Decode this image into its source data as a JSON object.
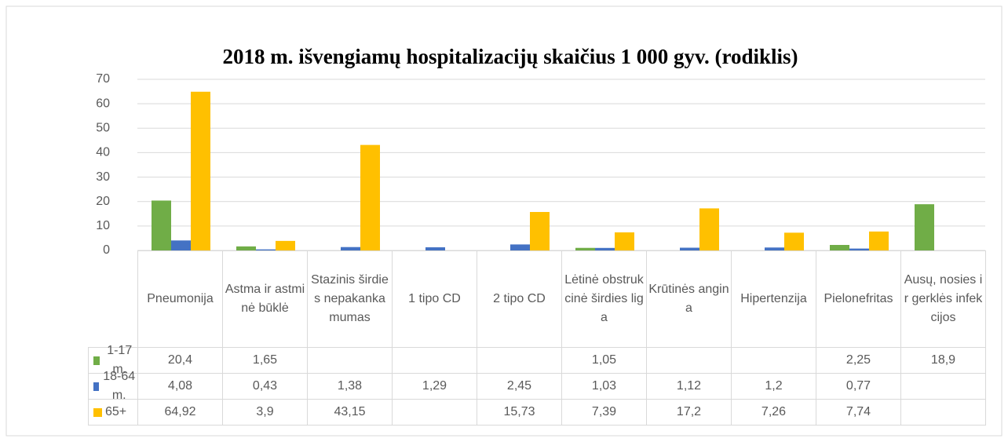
{
  "chart_data": {
    "type": "bar",
    "title": "2018 m. išvengiamų hospitalizacijų skaičius 1 000 gyv. (rodiklis)",
    "categories": [
      "Pneumonija",
      "Astma ir astminė būklė",
      "Stazinis širdies nepakankamumas",
      "1 tipo CD",
      "2 tipo CD",
      "Lėtinė obstrukcinė širdies liga",
      "Krūtinės angina",
      "Hipertenzija",
      "Pielonefritas",
      "Ausų, nosies ir gerklės infekcijos"
    ],
    "series": [
      {
        "name": "1-17 m.",
        "color": "#70ad47",
        "values": [
          20.4,
          1.65,
          null,
          null,
          null,
          1.05,
          null,
          null,
          2.25,
          18.9
        ],
        "value_labels": [
          "20,4",
          "1,65",
          null,
          null,
          null,
          "1,05",
          null,
          null,
          "2,25",
          "18,9"
        ]
      },
      {
        "name": "18-64 m.",
        "color": "#4472c4",
        "values": [
          4.08,
          0.43,
          1.38,
          1.29,
          2.45,
          1.03,
          1.12,
          1.2,
          0.77,
          null
        ],
        "value_labels": [
          "4,08",
          "0,43",
          "1,38",
          "1,29",
          "2,45",
          "1,03",
          "1,12",
          "1,2",
          "0,77",
          null
        ]
      },
      {
        "name": "65+",
        "color": "#ffc000",
        "values": [
          64.92,
          3.9,
          43.15,
          null,
          15.73,
          7.39,
          17.2,
          7.26,
          7.74,
          null
        ],
        "value_labels": [
          "64,92",
          "3,9",
          "43,15",
          null,
          "15,73",
          "7,39",
          "17,2",
          "7,26",
          "7,74",
          null
        ]
      }
    ],
    "ylim": [
      0,
      70
    ],
    "yticks": [
      0,
      10,
      20,
      30,
      40,
      50,
      60,
      70
    ],
    "grid": true
  }
}
